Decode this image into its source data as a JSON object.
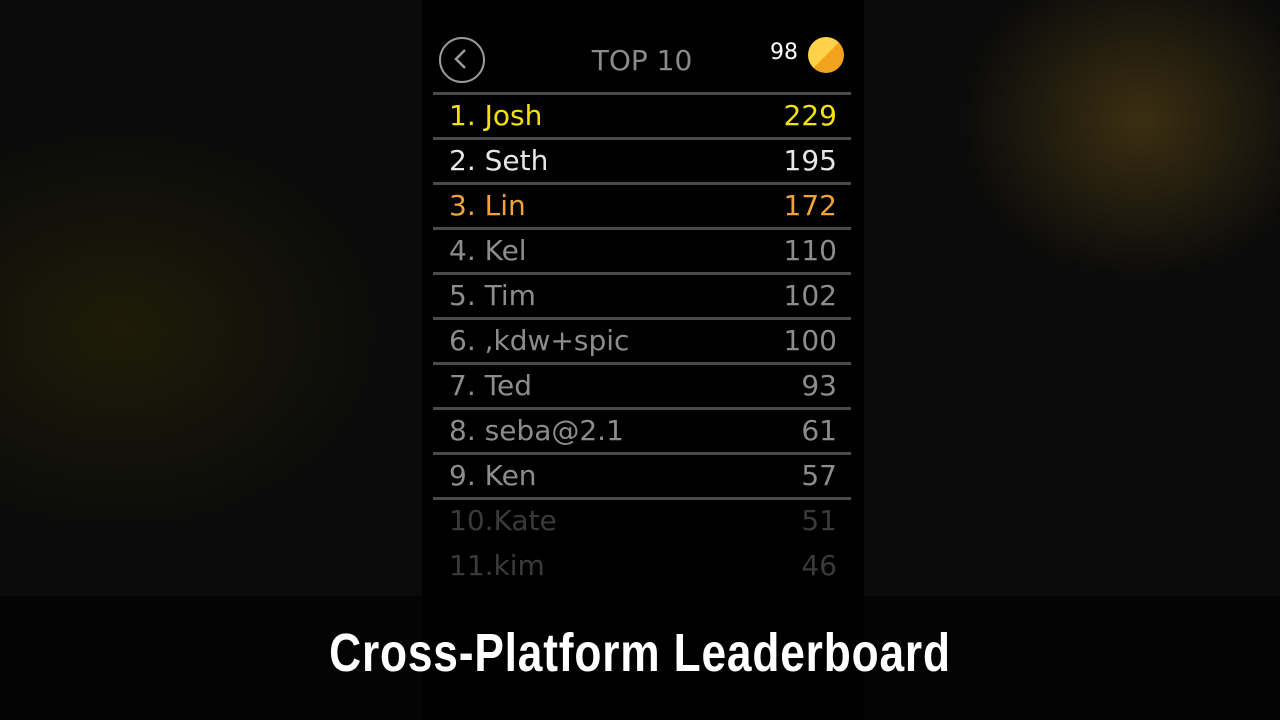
{
  "header": {
    "title": "TOP 10",
    "coins": "98",
    "back_icon": "chevron-left-circle-icon",
    "coin_icon": "coin-icon"
  },
  "leaderboard": [
    {
      "name": "1. Josh",
      "score": "229",
      "color": "#f5e10a"
    },
    {
      "name": "2. Seth",
      "score": "195",
      "color": "#e6e6e6"
    },
    {
      "name": "3. Lin",
      "score": "172",
      "color": "#f0a23a"
    },
    {
      "name": "4. Kel",
      "score": "110",
      "color": "#8c8c8c"
    },
    {
      "name": "5. Tim",
      "score": "102",
      "color": "#8c8c8c"
    },
    {
      "name": "6. ,kdw+spic",
      "score": "100",
      "color": "#8c8c8c"
    },
    {
      "name": "7. Ted",
      "score": "93",
      "color": "#8c8c8c"
    },
    {
      "name": "8. seba@2.1",
      "score": "61",
      "color": "#8c8c8c"
    },
    {
      "name": "9. Ken",
      "score": "57",
      "color": "#8c8c8c"
    },
    {
      "name": "10.Kate",
      "score": "51",
      "color": "#3a3a3a"
    },
    {
      "name": "11.kim",
      "score": "46",
      "color": "#3a3a3a"
    }
  ],
  "caption": "Cross-Platform Leaderboard"
}
